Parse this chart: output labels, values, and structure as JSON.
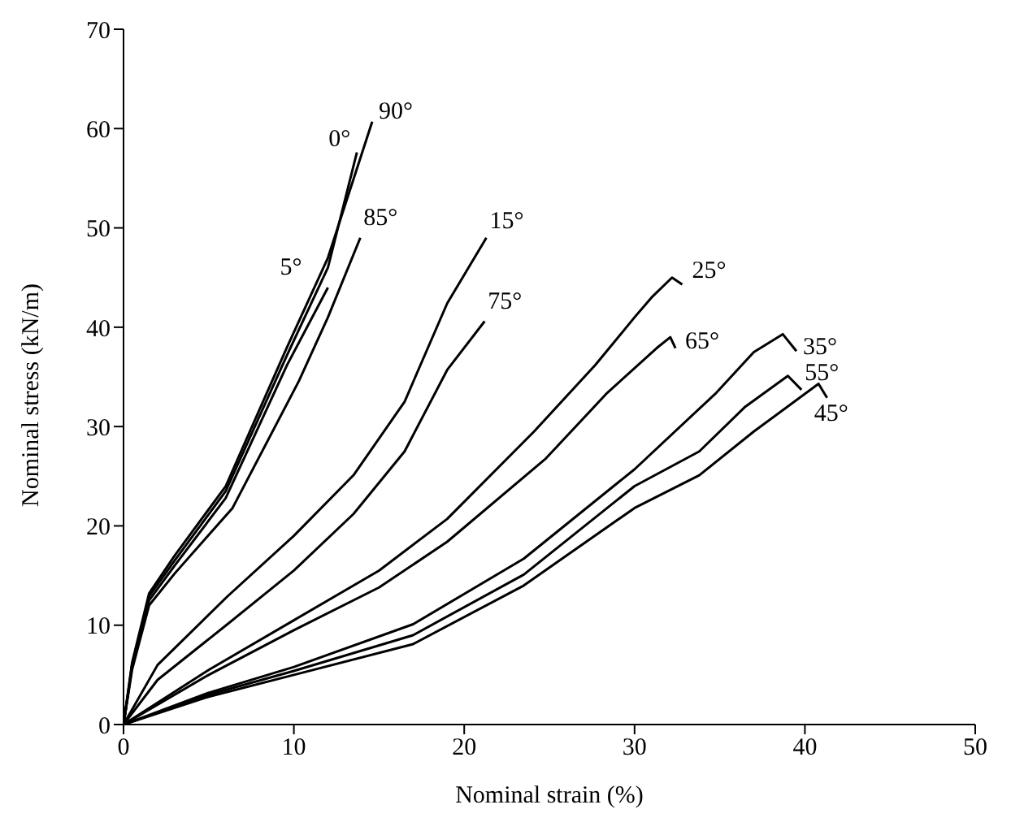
{
  "chart_data": {
    "type": "line",
    "xlabel": "Nominal strain (%)",
    "ylabel": "Nominal stress (kN/m)",
    "xlim": [
      0,
      50
    ],
    "xticks": [
      0,
      10,
      20,
      30,
      40,
      50
    ],
    "ylim": [
      0,
      70
    ],
    "yticks": [
      0,
      10,
      20,
      30,
      40,
      50,
      60,
      70
    ],
    "grid": false,
    "legend": false,
    "marker": "none",
    "line_style": "solid",
    "series": [
      {
        "name": "0°",
        "color": "#000000",
        "x": [
          0,
          0.5,
          1.5,
          3,
          6,
          9.6,
          12,
          13.7
        ],
        "values": [
          0,
          6,
          12.9,
          16.5,
          23.5,
          37.2,
          46,
          57.6
        ]
      },
      {
        "name": "5°",
        "color": "#000000",
        "x": [
          0,
          0.5,
          1.5,
          3,
          6,
          9.6,
          12
        ],
        "values": [
          0,
          5.8,
          12.5,
          16,
          22.8,
          36.2,
          44
        ]
      },
      {
        "name": "15°",
        "color": "#000000",
        "x": [
          0,
          2,
          6.1,
          10,
          13.5,
          16.5,
          19,
          21.3
        ],
        "values": [
          0,
          6,
          12.9,
          19,
          25.1,
          32.5,
          42.4,
          49
        ]
      },
      {
        "name": "25°",
        "color": "#000000",
        "x": [
          0,
          5,
          10,
          15,
          19,
          24.1,
          27.7,
          30,
          31,
          32.2,
          32.8
        ],
        "values": [
          0,
          5.5,
          10.5,
          15.5,
          20.7,
          29.5,
          36.2,
          41,
          43,
          45,
          44.3
        ]
      },
      {
        "name": "35°",
        "color": "#000000",
        "x": [
          0,
          5,
          10,
          17,
          23.5,
          30,
          34.8,
          37,
          38.7,
          39.5
        ],
        "values": [
          0,
          3.2,
          5.8,
          10.1,
          16.7,
          25.7,
          33.4,
          37.5,
          39.3,
          37.6
        ]
      },
      {
        "name": "45°",
        "color": "#000000",
        "x": [
          0,
          5,
          10,
          17,
          23.5,
          30,
          33.8,
          37,
          40.8,
          41.3
        ],
        "values": [
          0,
          2.8,
          5,
          8.1,
          14,
          21.8,
          25.1,
          29.5,
          34.3,
          32.9
        ]
      },
      {
        "name": "55°",
        "color": "#000000",
        "x": [
          0,
          5,
          10,
          17,
          23.5,
          30,
          33.8,
          36.5,
          39,
          39.8
        ],
        "values": [
          0,
          3,
          5.4,
          9,
          15.1,
          24,
          27.5,
          32,
          35.1,
          33.7
        ]
      },
      {
        "name": "65°",
        "color": "#000000",
        "x": [
          0,
          5,
          10,
          15,
          19,
          24.8,
          28.4,
          31.3,
          32.1,
          32.4
        ],
        "values": [
          0,
          5,
          9.5,
          13.8,
          18.4,
          26.8,
          33.4,
          37.9,
          39,
          37.9
        ]
      },
      {
        "name": "75°",
        "color": "#000000",
        "x": [
          0,
          2,
          6.1,
          10,
          13.5,
          16.5,
          19,
          21.2
        ],
        "values": [
          0,
          4.5,
          10.1,
          15.5,
          21.2,
          27.5,
          35.7,
          40.6
        ]
      },
      {
        "name": "85°",
        "color": "#000000",
        "x": [
          0,
          0.5,
          1.5,
          3,
          6.4,
          10.3,
          12,
          13.9
        ],
        "values": [
          0,
          5.5,
          12,
          15.2,
          21.8,
          34.6,
          41,
          49
        ]
      },
      {
        "name": "90°",
        "color": "#000000",
        "x": [
          0,
          0.5,
          1.5,
          3,
          6,
          9.6,
          12,
          14.6
        ],
        "values": [
          0,
          6.2,
          13.2,
          17,
          24,
          38,
          47,
          60.7
        ]
      }
    ]
  }
}
